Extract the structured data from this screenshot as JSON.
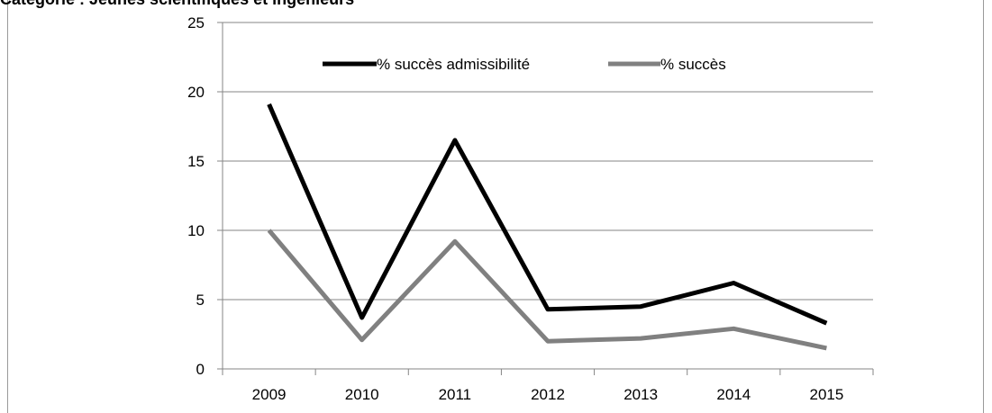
{
  "chart_data": {
    "type": "line",
    "title": "Catégorie : Jeunes scientifiques et ingénieurs",
    "xlabel": "",
    "ylabel": "",
    "categories": [
      "2009",
      "2010",
      "2011",
      "2012",
      "2013",
      "2014",
      "2015"
    ],
    "ylim": [
      0,
      25
    ],
    "yticks": [
      "0",
      "5",
      "10",
      "15",
      "20",
      "25"
    ],
    "grid": "horizontal",
    "legend_position": "top",
    "series": [
      {
        "name": "% succès admissibilité",
        "color": "#000000",
        "values": [
          19.1,
          3.7,
          16.5,
          4.3,
          4.5,
          6.2,
          3.3
        ]
      },
      {
        "name": "% succès",
        "color": "#808080",
        "values": [
          10.0,
          2.1,
          9.2,
          2.0,
          2.2,
          2.9,
          1.5
        ]
      }
    ],
    "colors": {
      "axis": "#868686",
      "grid": "#868686"
    }
  }
}
